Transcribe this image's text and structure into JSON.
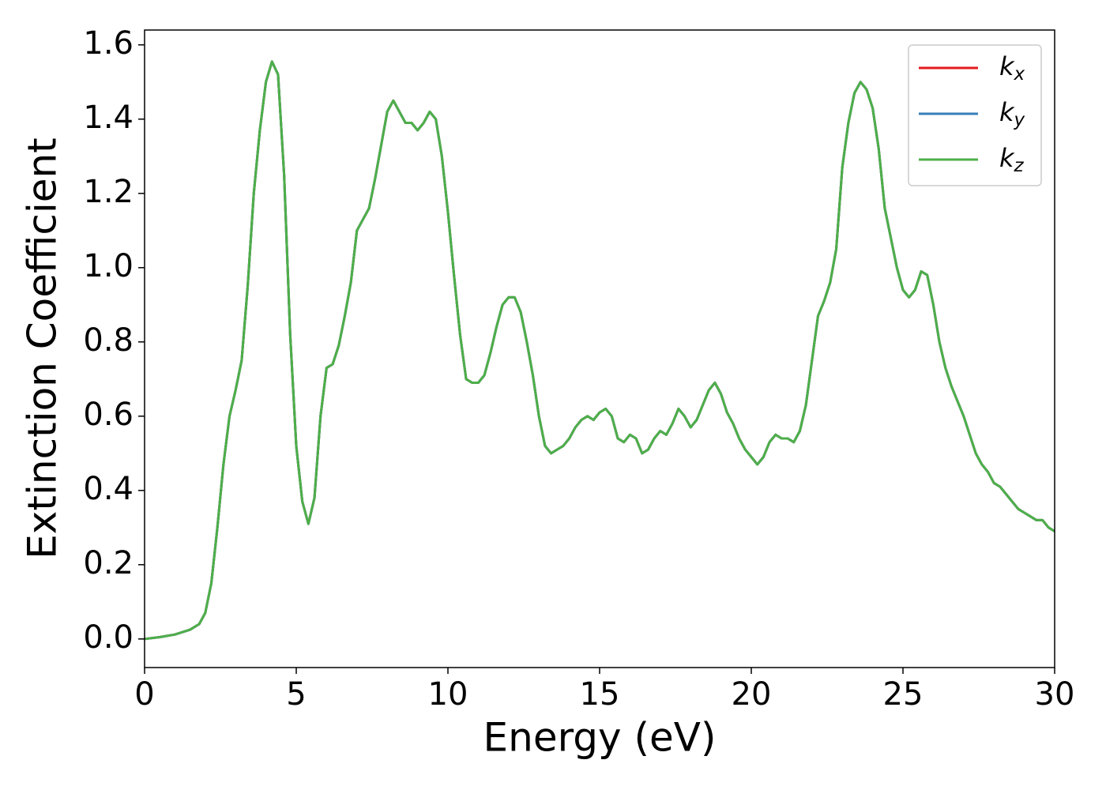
{
  "chart_data": {
    "type": "line",
    "xlabel": "Energy (eV)",
    "ylabel": "Extinction Coefficient",
    "xlim": [
      0,
      30
    ],
    "ylim": [
      -0.077,
      1.64
    ],
    "xticks": [
      0,
      5,
      10,
      15,
      20,
      25,
      30
    ],
    "yticks": [
      {
        "value": 0.0,
        "label": "0.0"
      },
      0.2,
      0.4,
      0.6,
      0.8,
      {
        "value": 1.0,
        "label": "1.0"
      },
      1.2,
      1.4,
      1.6
    ],
    "grid": false,
    "legend": "upper right",
    "x": [
      0,
      0.5,
      1,
      1.5,
      1.8,
      2.0,
      2.2,
      2.4,
      2.6,
      2.8,
      3.0,
      3.2,
      3.4,
      3.6,
      3.8,
      4.0,
      4.2,
      4.4,
      4.6,
      4.8,
      5.0,
      5.2,
      5.4,
      5.6,
      5.8,
      6.0,
      6.2,
      6.4,
      6.6,
      6.8,
      7.0,
      7.2,
      7.4,
      7.6,
      7.8,
      8.0,
      8.2,
      8.4,
      8.6,
      8.8,
      9.0,
      9.2,
      9.4,
      9.6,
      9.8,
      10.0,
      10.2,
      10.4,
      10.6,
      10.8,
      11.0,
      11.2,
      11.4,
      11.6,
      11.8,
      12.0,
      12.2,
      12.4,
      12.6,
      12.8,
      13.0,
      13.2,
      13.4,
      13.6,
      13.8,
      14.0,
      14.2,
      14.4,
      14.6,
      14.8,
      15.0,
      15.2,
      15.4,
      15.6,
      15.8,
      16.0,
      16.2,
      16.4,
      16.6,
      16.8,
      17.0,
      17.2,
      17.4,
      17.6,
      17.8,
      18.0,
      18.2,
      18.4,
      18.6,
      18.8,
      19.0,
      19.2,
      19.4,
      19.6,
      19.8,
      20.0,
      20.2,
      20.4,
      20.6,
      20.8,
      21.0,
      21.2,
      21.4,
      21.6,
      21.8,
      22.0,
      22.2,
      22.4,
      22.6,
      22.8,
      23.0,
      23.2,
      23.4,
      23.6,
      23.8,
      24.0,
      24.2,
      24.4,
      24.6,
      24.8,
      25.0,
      25.2,
      25.4,
      25.6,
      25.8,
      26.0,
      26.2,
      26.4,
      26.6,
      26.8,
      27.0,
      27.2,
      27.4,
      27.6,
      27.8,
      28.0,
      28.2,
      28.4,
      28.6,
      28.8,
      29.0,
      29.2,
      29.4,
      29.6,
      29.8,
      30.0
    ],
    "series": [
      {
        "name": "kx",
        "color": "#e41a1c",
        "values": [
          0,
          0.005,
          0.012,
          0.025,
          0.04,
          0.07,
          0.15,
          0.3,
          0.47,
          0.6,
          0.67,
          0.75,
          0.95,
          1.2,
          1.37,
          1.5,
          1.555,
          1.52,
          1.25,
          0.82,
          0.52,
          0.37,
          0.31,
          0.38,
          0.6,
          0.73,
          0.74,
          0.79,
          0.87,
          0.96,
          1.1,
          1.13,
          1.16,
          1.24,
          1.33,
          1.42,
          1.45,
          1.42,
          1.39,
          1.39,
          1.37,
          1.39,
          1.42,
          1.4,
          1.3,
          1.15,
          0.98,
          0.82,
          0.7,
          0.69,
          0.69,
          0.71,
          0.77,
          0.84,
          0.9,
          0.92,
          0.92,
          0.88,
          0.8,
          0.71,
          0.6,
          0.52,
          0.5,
          0.51,
          0.52,
          0.54,
          0.57,
          0.59,
          0.6,
          0.59,
          0.61,
          0.62,
          0.6,
          0.54,
          0.53,
          0.55,
          0.54,
          0.5,
          0.51,
          0.54,
          0.56,
          0.55,
          0.58,
          0.62,
          0.6,
          0.57,
          0.59,
          0.63,
          0.67,
          0.69,
          0.66,
          0.61,
          0.58,
          0.54,
          0.51,
          0.49,
          0.47,
          0.49,
          0.53,
          0.55,
          0.54,
          0.54,
          0.53,
          0.56,
          0.63,
          0.75,
          0.87,
          0.91,
          0.96,
          1.05,
          1.27,
          1.39,
          1.47,
          1.5,
          1.48,
          1.43,
          1.32,
          1.16,
          1.08,
          1.0,
          0.94,
          0.92,
          0.94,
          0.99,
          0.98,
          0.9,
          0.8,
          0.73,
          0.68,
          0.64,
          0.6,
          0.55,
          0.5,
          0.47,
          0.45,
          0.42,
          0.41,
          0.39,
          0.37,
          0.35,
          0.34,
          0.33,
          0.32,
          0.32,
          0.3,
          0.29
        ]
      },
      {
        "name": "ky",
        "color": "#377eb8",
        "values": [
          0,
          0.005,
          0.012,
          0.025,
          0.04,
          0.07,
          0.15,
          0.3,
          0.47,
          0.6,
          0.67,
          0.75,
          0.95,
          1.2,
          1.37,
          1.5,
          1.555,
          1.52,
          1.25,
          0.82,
          0.52,
          0.37,
          0.31,
          0.38,
          0.6,
          0.73,
          0.74,
          0.79,
          0.87,
          0.96,
          1.1,
          1.13,
          1.16,
          1.24,
          1.33,
          1.42,
          1.45,
          1.42,
          1.39,
          1.39,
          1.37,
          1.39,
          1.42,
          1.4,
          1.3,
          1.15,
          0.98,
          0.82,
          0.7,
          0.69,
          0.69,
          0.71,
          0.77,
          0.84,
          0.9,
          0.92,
          0.92,
          0.88,
          0.8,
          0.71,
          0.6,
          0.52,
          0.5,
          0.51,
          0.52,
          0.54,
          0.57,
          0.59,
          0.6,
          0.59,
          0.61,
          0.62,
          0.6,
          0.54,
          0.53,
          0.55,
          0.54,
          0.5,
          0.51,
          0.54,
          0.56,
          0.55,
          0.58,
          0.62,
          0.6,
          0.57,
          0.59,
          0.63,
          0.67,
          0.69,
          0.66,
          0.61,
          0.58,
          0.54,
          0.51,
          0.49,
          0.47,
          0.49,
          0.53,
          0.55,
          0.54,
          0.54,
          0.53,
          0.56,
          0.63,
          0.75,
          0.87,
          0.91,
          0.96,
          1.05,
          1.27,
          1.39,
          1.47,
          1.5,
          1.48,
          1.43,
          1.32,
          1.16,
          1.08,
          1.0,
          0.94,
          0.92,
          0.94,
          0.99,
          0.98,
          0.9,
          0.8,
          0.73,
          0.68,
          0.64,
          0.6,
          0.55,
          0.5,
          0.47,
          0.45,
          0.42,
          0.41,
          0.39,
          0.37,
          0.35,
          0.34,
          0.33,
          0.32,
          0.32,
          0.3,
          0.29
        ]
      },
      {
        "name": "kz",
        "color": "#4daf4a",
        "values": [
          0,
          0.005,
          0.012,
          0.025,
          0.04,
          0.07,
          0.15,
          0.3,
          0.47,
          0.6,
          0.67,
          0.75,
          0.95,
          1.2,
          1.37,
          1.5,
          1.555,
          1.52,
          1.25,
          0.82,
          0.52,
          0.37,
          0.31,
          0.38,
          0.6,
          0.73,
          0.74,
          0.79,
          0.87,
          0.96,
          1.1,
          1.13,
          1.16,
          1.24,
          1.33,
          1.42,
          1.45,
          1.42,
          1.39,
          1.39,
          1.37,
          1.39,
          1.42,
          1.4,
          1.3,
          1.15,
          0.98,
          0.82,
          0.7,
          0.69,
          0.69,
          0.71,
          0.77,
          0.84,
          0.9,
          0.92,
          0.92,
          0.88,
          0.8,
          0.71,
          0.6,
          0.52,
          0.5,
          0.51,
          0.52,
          0.54,
          0.57,
          0.59,
          0.6,
          0.59,
          0.61,
          0.62,
          0.6,
          0.54,
          0.53,
          0.55,
          0.54,
          0.5,
          0.51,
          0.54,
          0.56,
          0.55,
          0.58,
          0.62,
          0.6,
          0.57,
          0.59,
          0.63,
          0.67,
          0.69,
          0.66,
          0.61,
          0.58,
          0.54,
          0.51,
          0.49,
          0.47,
          0.49,
          0.53,
          0.55,
          0.54,
          0.54,
          0.53,
          0.56,
          0.63,
          0.75,
          0.87,
          0.91,
          0.96,
          1.05,
          1.27,
          1.39,
          1.47,
          1.5,
          1.48,
          1.43,
          1.32,
          1.16,
          1.08,
          1.0,
          0.94,
          0.92,
          0.94,
          0.99,
          0.98,
          0.9,
          0.8,
          0.73,
          0.68,
          0.64,
          0.6,
          0.55,
          0.5,
          0.47,
          0.45,
          0.42,
          0.41,
          0.39,
          0.37,
          0.35,
          0.34,
          0.33,
          0.32,
          0.32,
          0.3,
          0.29
        ]
      }
    ]
  }
}
